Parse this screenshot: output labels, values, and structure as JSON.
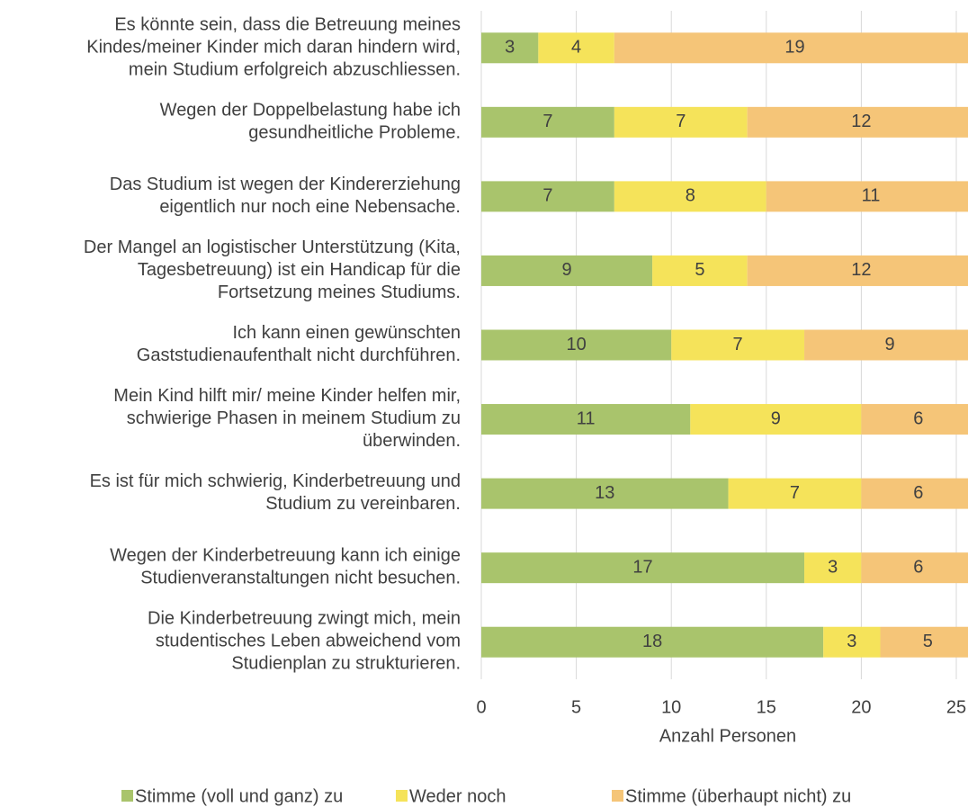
{
  "chart_data": {
    "type": "stacked-barh",
    "categories": [
      "Es könnte sein, dass die Betreuung meines\nKindes/meiner Kinder mich daran hindern wird,\nmein Studium erfolgreich abzuschliessen.",
      "Wegen der Doppelbelastung habe ich\ngesundheitliche Probleme.",
      "Das Studium ist wegen der Kindererziehung\neigentlich nur noch eine Nebensache.",
      "Der Mangel an logistischer Unterstützung (Kita,\nTagesbetreuung) ist ein Handicap für die\nFortsetzung meines Studiums.",
      "Ich kann einen gewünschten\nGaststudienaufenthalt nicht durchführen.",
      "Mein Kind hilft mir/ meine Kinder helfen mir,\nschwierige Phasen in meinem Studium zu\nüberwinden.",
      "Es ist für mich schwierig, Kinderbetreuung und\nStudium zu vereinbaren.",
      "Wegen der Kinderbetreuung kann ich einige\nStudienveranstaltungen nicht besuchen.",
      "Die Kinderbetreuung zwingt mich, mein\nstudentisches Leben abweichend vom\nStudienplan zu strukturieren."
    ],
    "series": [
      {
        "name": "Stimme (voll und ganz) zu",
        "color": "#a9c46c",
        "values": [
          3,
          7,
          7,
          9,
          10,
          11,
          13,
          17,
          18
        ]
      },
      {
        "name": "Weder noch",
        "color": "#f5e35a",
        "values": [
          4,
          7,
          8,
          5,
          7,
          9,
          7,
          3,
          3
        ]
      },
      {
        "name": "Stimme (überhaupt nicht) zu",
        "color": "#f5c578",
        "values": [
          19,
          12,
          11,
          12,
          9,
          6,
          6,
          6,
          5
        ]
      }
    ],
    "xlabel": "Anzahl Personen",
    "xlim": [
      0,
      26
    ],
    "xticks": [
      0,
      5,
      10,
      15,
      20,
      25
    ],
    "grid": true,
    "legend": "bottom"
  }
}
